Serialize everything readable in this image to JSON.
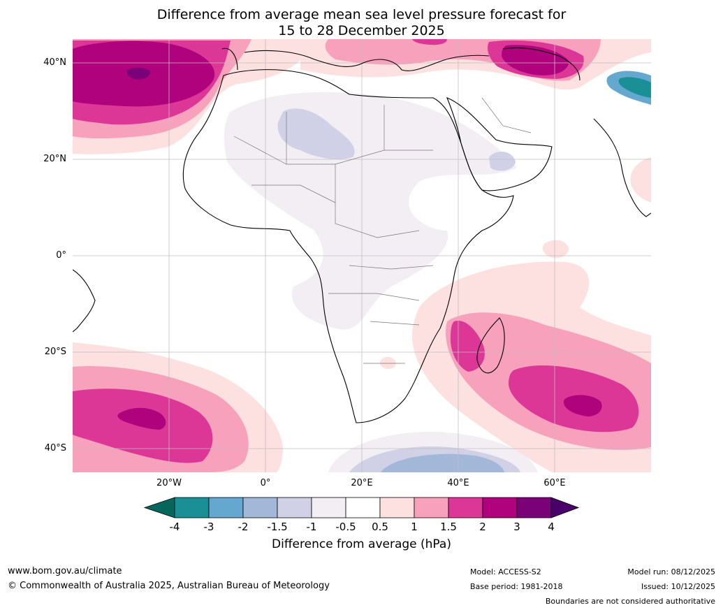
{
  "title": {
    "line1": "Difference from average mean sea level pressure forecast for",
    "line2": "15 to 28 December 2025"
  },
  "axes": {
    "lat_labels": [
      "40°N",
      "20°N",
      "0°",
      "20°S",
      "40°S"
    ],
    "lon_labels": [
      "20°W",
      "0°",
      "20°E",
      "40°E",
      "60°E"
    ]
  },
  "colorbar": {
    "ticks": [
      "-4",
      "-3",
      "-2",
      "-1.5",
      "-1",
      "-0.5",
      "0.5",
      "1",
      "1.5",
      "2",
      "3",
      "4"
    ],
    "colors": [
      "#1a8f96",
      "#65a8cf",
      "#a3b8d8",
      "#d0d1e6",
      "#f3eef4",
      "#ffffff",
      "#fde0e0",
      "#f7a1bd",
      "#dc3696",
      "#b0027c",
      "#7a0177"
    ],
    "under_color": "#05665c",
    "over_color": "#49006a",
    "label": "Difference from average (hPa)"
  },
  "footer": {
    "website": "www.bom.gov.au/climate",
    "copyright": "© Commonwealth of Australia 2025, Australian Bureau of Meteorology",
    "model": "Model: ACCESS-S2",
    "base_period": "Base period: 1981-2018",
    "model_run": "Model run: 08/12/2025",
    "issued": "Issued: 10/12/2025",
    "disclaimer": "Boundaries are not considered authoritative"
  }
}
